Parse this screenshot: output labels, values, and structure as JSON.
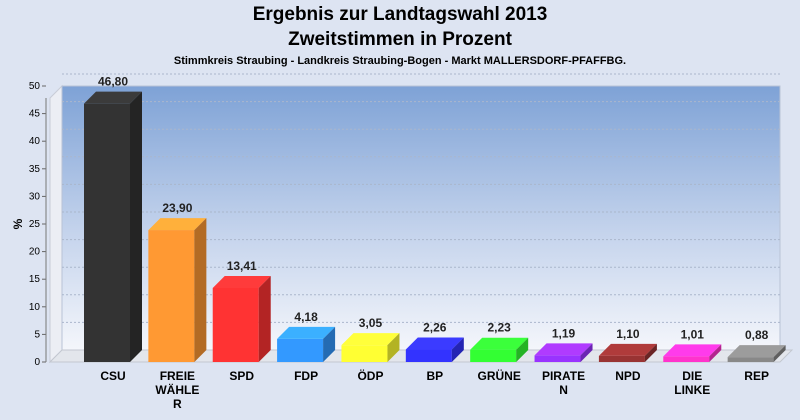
{
  "chart_data": {
    "type": "bar",
    "title": "Ergebnis zur Landtagswahl 2013",
    "title_line2": "Zweitstimmen in Prozent",
    "subtitle": "Stimmkreis Straubing - Landkreis Straubing-Bogen - Markt MALLERSDORF-PFAFFBG.",
    "ylabel": "%",
    "xlabel": "",
    "ylim": [
      0,
      50
    ],
    "yticks": [
      "0",
      "5",
      "10",
      "15",
      "20",
      "25",
      "30",
      "35",
      "40",
      "45",
      "50"
    ],
    "grid": true,
    "categories": [
      "CSU",
      "FREIE WÄHLER",
      "SPD",
      "FDP",
      "ÖDP",
      "BP",
      "GRÜNE",
      "PIRATEN",
      "NPD",
      "DIE LINKE",
      "REP"
    ],
    "category_label_lines": [
      [
        "CSU"
      ],
      [
        "FREIE",
        "WÄHLE",
        "R"
      ],
      [
        "SPD"
      ],
      [
        "FDP"
      ],
      [
        "ÖDP"
      ],
      [
        "BP"
      ],
      [
        "GRÜNE"
      ],
      [
        "PIRATE",
        "N"
      ],
      [
        "NPD"
      ],
      [
        "DIE",
        "LINKE"
      ],
      [
        "REP"
      ]
    ],
    "values": [
      46.8,
      23.9,
      13.41,
      4.18,
      3.05,
      2.26,
      2.23,
      1.19,
      1.1,
      1.01,
      0.88
    ],
    "value_labels": [
      "46,80",
      "23,90",
      "13,41",
      "4,18",
      "3,05",
      "2,26",
      "2,23",
      "1,19",
      "1,10",
      "1,01",
      "0,88"
    ],
    "colors": [
      "#333333",
      "#ff9933",
      "#ff3333",
      "#3399ff",
      "#ffff33",
      "#3333ff",
      "#33ff33",
      "#9933ff",
      "#993333",
      "#ff33cc",
      "#888888"
    ]
  }
}
